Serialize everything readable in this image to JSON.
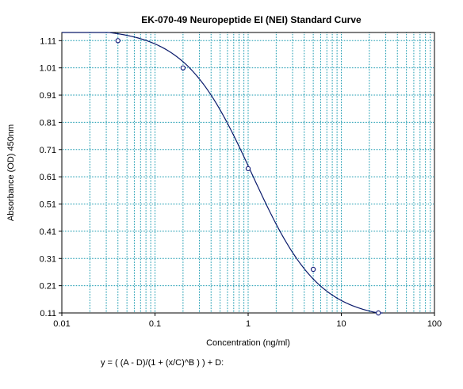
{
  "chart_data": {
    "type": "scatter",
    "title": "EK-070-49 Neuropeptide EI (NEI) Standard Curve",
    "xlabel": "Concentration (ng/ml)",
    "ylabel": "Absorbance (OD) 450nm",
    "x_scale": "log",
    "xlim": [
      0.01,
      100
    ],
    "ylim": [
      0.11,
      1.14
    ],
    "x_ticks": [
      0.01,
      0.1,
      1,
      10,
      100
    ],
    "x_tick_labels": [
      "0.01",
      "0.1",
      "1",
      "10",
      "100"
    ],
    "y_ticks": [
      0.11,
      0.21,
      0.31,
      0.41,
      0.51,
      0.61,
      0.71,
      0.81,
      0.91,
      1.01,
      1.11
    ],
    "y_tick_labels": [
      "0.11",
      "0.21",
      "0.31",
      "0.41",
      "0.51",
      "0.61",
      "0.71",
      "0.81",
      "0.91",
      "1.01",
      "1.11"
    ],
    "grid": true,
    "points": {
      "x": [
        0.04,
        0.2,
        1,
        5,
        25
      ],
      "y": [
        1.11,
        1.01,
        0.64,
        0.27,
        0.11
      ]
    },
    "formula": "y = ( (A - D)/(1 + (x/C)^B ) ) + D:",
    "colors": {
      "grid": "#1b9bb0",
      "curve": "#0a1a6b",
      "points": "#1a237e",
      "axis": "#000000"
    }
  }
}
